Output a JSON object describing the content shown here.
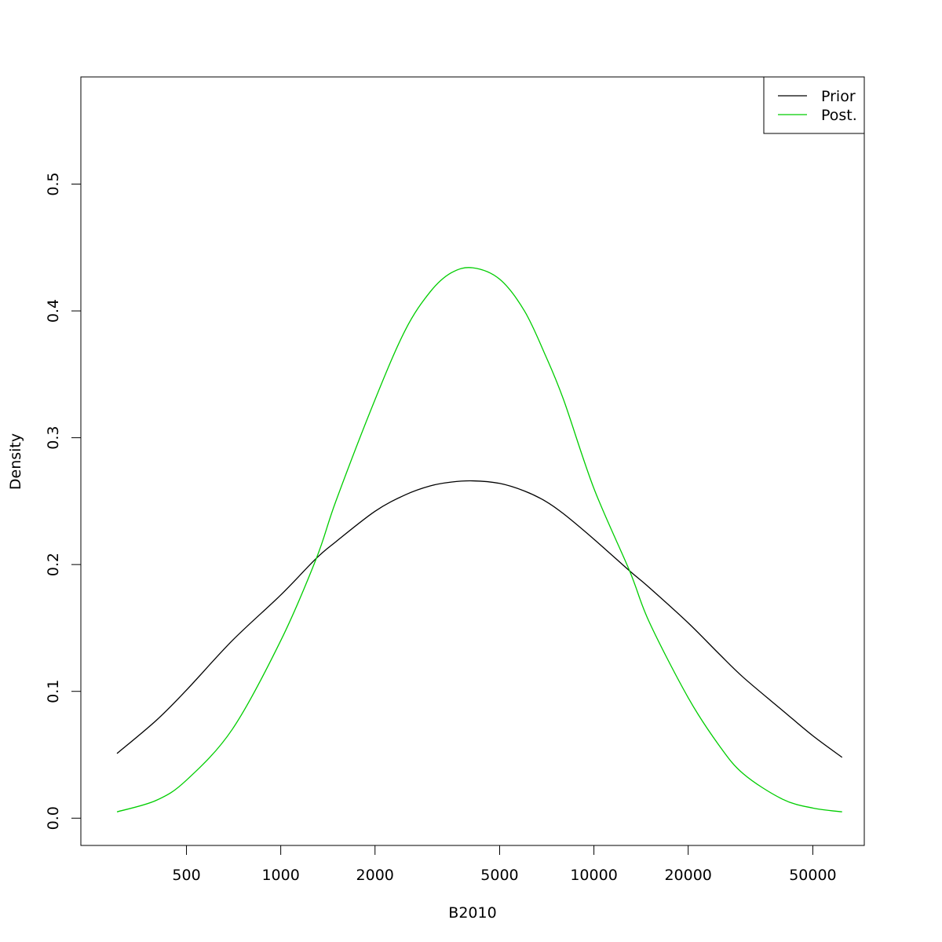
{
  "chart_data": {
    "type": "line",
    "title": "",
    "xlabel": "B2010",
    "ylabel": "Density",
    "x_scale": "log",
    "xlim": [
      230,
      73000
    ],
    "ylim": [
      -0.0215,
      0.5845
    ],
    "x_ticks": [
      500,
      1000,
      2000,
      5000,
      10000,
      20000,
      50000
    ],
    "x_tick_labels": [
      "500",
      "1000",
      "2000",
      "5000",
      "10000",
      "20000",
      "50000"
    ],
    "y_ticks": [
      0.0,
      0.1,
      0.2,
      0.3,
      0.4,
      0.5
    ],
    "y_tick_labels": [
      "0.0",
      "0.1",
      "0.2",
      "0.3",
      "0.4",
      "0.5"
    ],
    "grid": false,
    "legend": {
      "position": "top-right"
    },
    "series": [
      {
        "name": "Prior",
        "color": "#000000",
        "x": [
          300,
          400,
          500,
          700,
          1000,
          1300,
          1500,
          2000,
          2500,
          3000,
          3500,
          4100,
          5000,
          6000,
          7000,
          8000,
          10000,
          13000,
          15000,
          20000,
          25000,
          30000,
          40000,
          50000,
          62000
        ],
        "y": [
          0.051,
          0.077,
          0.101,
          0.14,
          0.176,
          0.205,
          0.218,
          0.242,
          0.255,
          0.262,
          0.265,
          0.266,
          0.264,
          0.258,
          0.25,
          0.24,
          0.22,
          0.195,
          0.182,
          0.154,
          0.13,
          0.111,
          0.085,
          0.065,
          0.048
        ]
      },
      {
        "name": "Post.",
        "color": "#00cd00",
        "x": [
          300,
          400,
          500,
          700,
          1000,
          1300,
          1500,
          2000,
          2500,
          3000,
          3500,
          4100,
          5000,
          6000,
          7000,
          8000,
          10000,
          13000,
          15000,
          20000,
          25000,
          30000,
          40000,
          50000,
          62000
        ],
        "y": [
          0.005,
          0.014,
          0.03,
          0.07,
          0.14,
          0.205,
          0.25,
          0.33,
          0.385,
          0.415,
          0.43,
          0.434,
          0.425,
          0.4,
          0.365,
          0.33,
          0.26,
          0.195,
          0.155,
          0.095,
          0.058,
          0.035,
          0.015,
          0.008,
          0.005
        ]
      }
    ]
  }
}
